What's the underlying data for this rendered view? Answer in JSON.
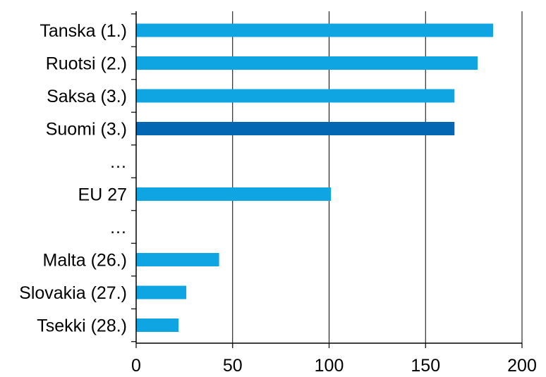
{
  "chart_data": {
    "type": "bar",
    "orientation": "horizontal",
    "categories": [
      "Tanska (1.)",
      "Ruotsi (2.)",
      "Saksa (3.)",
      "Suomi (3.)",
      "…",
      "EU 27",
      "…",
      "Malta (26.)",
      "Slovakia (27.)",
      "Tsekki (28.)"
    ],
    "values": [
      185,
      177,
      165,
      165,
      null,
      101,
      null,
      43,
      26,
      22
    ],
    "highlight_index": 3,
    "colors": {
      "bar": "#0ea5e2",
      "highlight": "#0467b3",
      "grid": "#000000"
    },
    "xlim": [
      0,
      200
    ],
    "xticks": [
      0,
      50,
      100,
      150,
      200
    ],
    "title": "",
    "xlabel": "",
    "ylabel": "",
    "grid": "vertical"
  }
}
